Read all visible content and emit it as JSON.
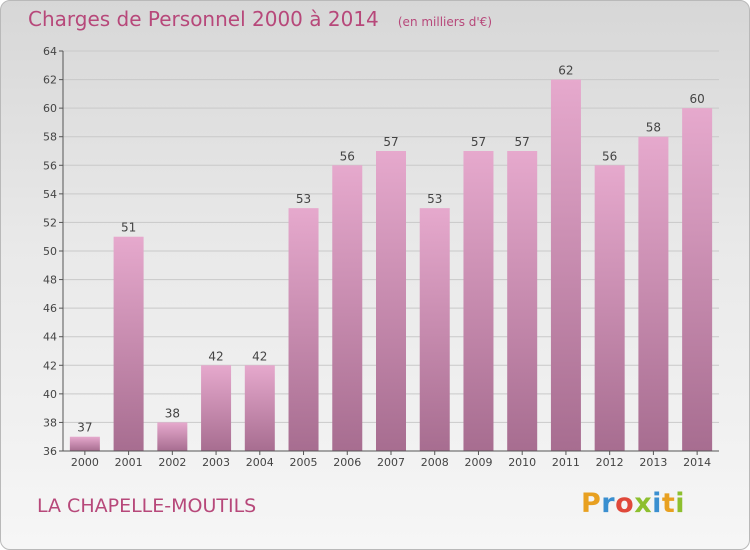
{
  "header": {
    "title": "Charges de Personnel 2000 à 2014",
    "subtitle": "(en milliers d'€)"
  },
  "footer": {
    "place": "LA CHAPELLE-MOUTILS",
    "logo": "Proxiti",
    "logo_colors": [
      "#e8a020",
      "#3a8fd0",
      "#e0483a",
      "#8dbf2e",
      "#3a8fd0",
      "#e8a020",
      "#8dbf2e"
    ]
  },
  "colors": {
    "accent": "#b7487a",
    "bar_top": "#e6a9cd",
    "bar_bottom": "#a76d90",
    "grid": "#c9c9c9",
    "axis": "#555555"
  },
  "chart_data": {
    "type": "bar",
    "title": "Charges de Personnel 2000 à 2014",
    "subtitle": "(en milliers d'€)",
    "categories": [
      "2000",
      "2001",
      "2002",
      "2003",
      "2004",
      "2005",
      "2006",
      "2007",
      "2008",
      "2009",
      "2010",
      "2011",
      "2012",
      "2013",
      "2014"
    ],
    "values": [
      37,
      51,
      38,
      42,
      42,
      53,
      56,
      57,
      53,
      57,
      57,
      62,
      56,
      58,
      60
    ],
    "ylim": [
      36,
      64
    ],
    "yticks": [
      36,
      38,
      40,
      42,
      44,
      46,
      48,
      50,
      52,
      54,
      56,
      58,
      60,
      62,
      64
    ],
    "xlabel": "",
    "ylabel": "",
    "grid": true,
    "data_labels": true
  }
}
